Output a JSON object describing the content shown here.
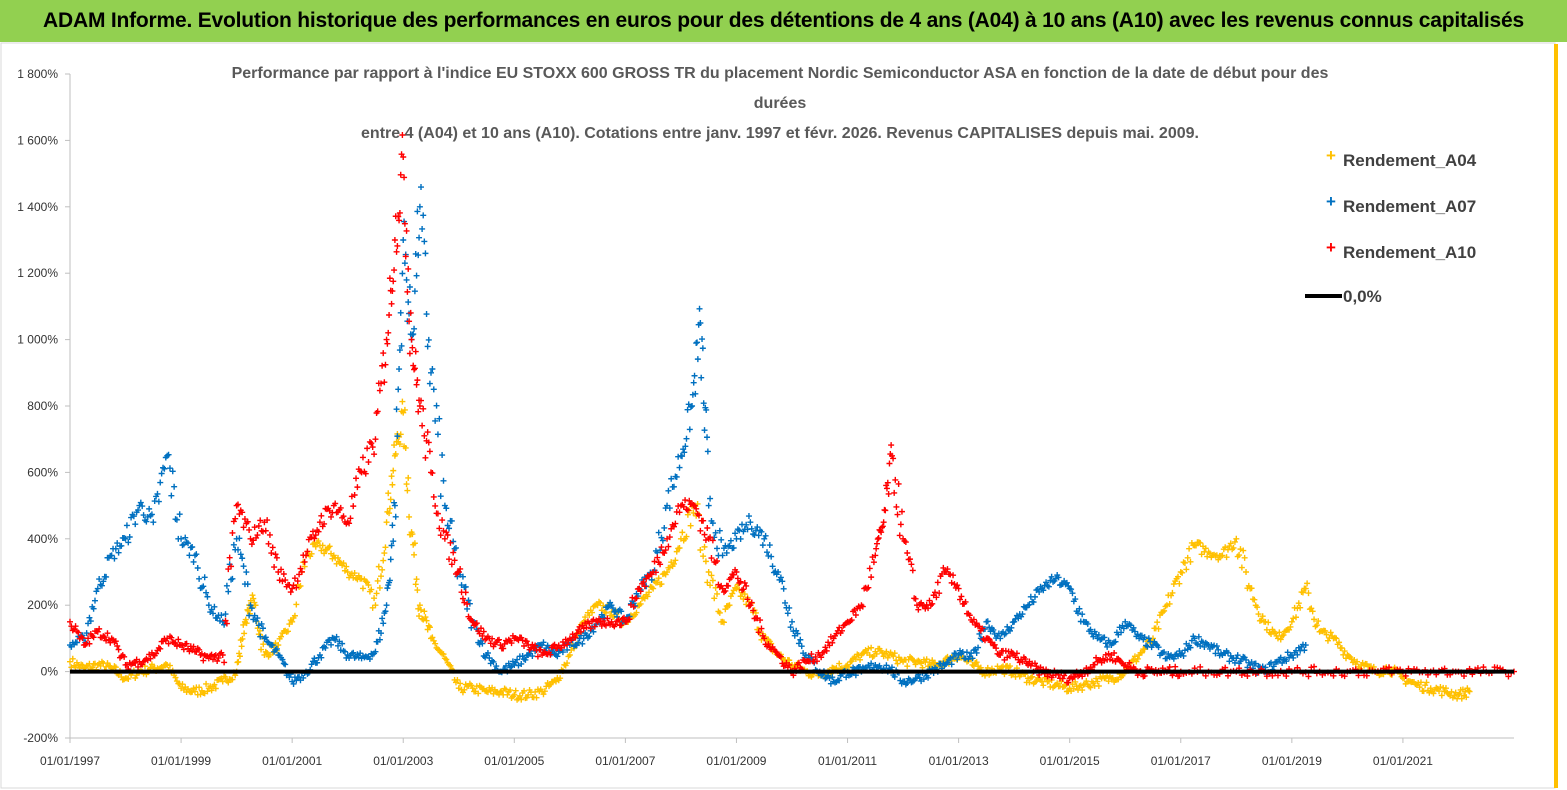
{
  "header": {
    "banner_text": "ADAM Informe. Evolution historique des performances en euros pour des détentions de 4 ans (A04) à 10 ans (A10) avec les revenus connus capitalisés"
  },
  "colors": {
    "banner": "#92d050",
    "A04": "#ffc000",
    "A07": "#0070c0",
    "A10": "#ff0000",
    "zero": "#000000"
  },
  "chart_data": {
    "type": "scatter",
    "title_lines": [
      "Performance par rapport à l'indice EU STOXX 600 GROSS TR  du placement Nordic Semiconductor ASA en fonction de la date de début pour des",
      "durées",
      "entre 4 (A04) et 10 ans (A10). Cotations entre janv. 1997 et févr. 2026. Revenus CAPITALISES depuis mai. 2009."
    ],
    "ylim": [
      -200,
      1800
    ],
    "y_ticks": [
      -200,
      0,
      200,
      400,
      600,
      800,
      1000,
      1200,
      1400,
      1600,
      1800
    ],
    "y_tick_labels": [
      "-200%",
      "0%",
      "200%",
      "400%",
      "600%",
      "800%",
      "1 000%",
      "1 200%",
      "1 400%",
      "1 600%",
      "1 800%"
    ],
    "xlim": [
      1997.0,
      2023.0
    ],
    "x_ticks": [
      1997,
      1999,
      2001,
      2003,
      2005,
      2007,
      2009,
      2011,
      2013,
      2015,
      2017,
      2019,
      2021
    ],
    "x_tick_labels": [
      "01/01/1997",
      "01/01/1999",
      "01/01/2001",
      "01/01/2003",
      "01/01/2005",
      "01/01/2007",
      "01/01/2009",
      "01/01/2011",
      "01/01/2013",
      "01/01/2015",
      "01/01/2017",
      "01/01/2019",
      "01/01/2021"
    ],
    "legend": [
      "Rendement_A04",
      "Rendement_A07",
      "Rendement_A10",
      "0,0%"
    ],
    "zero_line": 0,
    "series": [
      {
        "name": "Rendement_A04",
        "x": [
          1997.0,
          1997.25,
          1997.5,
          1997.75,
          1998.0,
          1998.25,
          1998.5,
          1998.75,
          1999.0,
          1999.25,
          1999.5,
          1999.75,
          2000.0,
          2000.15,
          2000.3,
          2000.5,
          2000.75,
          2001.0,
          2001.25,
          2001.5,
          2001.75,
          2002.0,
          2002.25,
          2002.5,
          2002.7,
          2002.85,
          2003.0,
          2003.15,
          2003.3,
          2003.5,
          2003.75,
          2004.0,
          2004.25,
          2004.5,
          2004.75,
          2005.0,
          2005.25,
          2005.5,
          2005.75,
          2006.0,
          2006.25,
          2006.5,
          2006.75,
          2007.0,
          2007.25,
          2007.5,
          2007.75,
          2008.0,
          2008.25,
          2008.5,
          2008.75,
          2009.0,
          2009.25,
          2009.5,
          2009.75,
          2010.0,
          2010.25,
          2010.5,
          2010.75,
          2011.0,
          2011.25,
          2011.5,
          2011.75,
          2012.0,
          2012.25,
          2012.5,
          2012.75,
          2013.0,
          2013.25,
          2013.5,
          2013.75,
          2014.0,
          2014.25,
          2014.5,
          2014.75,
          2015.0,
          2015.25,
          2015.5,
          2015.75,
          2016.0,
          2016.25,
          2016.5,
          2016.75,
          2017.0,
          2017.25,
          2017.5,
          2017.75,
          2018.0,
          2018.25,
          2018.5,
          2018.75,
          2019.0,
          2019.25,
          2019.5,
          2019.75,
          2020.0,
          2020.25,
          2020.5,
          2020.75,
          2021.0,
          2021.25,
          2021.5,
          2021.75,
          2022.0,
          2022.2
        ],
        "y": [
          30,
          10,
          20,
          10,
          -20,
          0,
          10,
          20,
          -50,
          -60,
          -50,
          -30,
          0,
          150,
          220,
          50,
          80,
          150,
          350,
          380,
          350,
          300,
          280,
          200,
          450,
          650,
          780,
          420,
          200,
          100,
          40,
          -50,
          -50,
          -60,
          -60,
          -70,
          -70,
          -60,
          -30,
          50,
          150,
          200,
          180,
          150,
          200,
          250,
          300,
          400,
          500,
          300,
          150,
          250,
          200,
          100,
          50,
          20,
          0,
          -10,
          10,
          20,
          50,
          60,
          50,
          30,
          30,
          20,
          30,
          50,
          20,
          0,
          10,
          0,
          -20,
          -30,
          -40,
          -50,
          -40,
          -30,
          -20,
          0,
          50,
          100,
          200,
          300,
          380,
          360,
          350,
          400,
          250,
          150,
          100,
          150,
          250,
          120,
          100,
          50,
          20,
          0,
          10,
          -20,
          -40,
          -50,
          -60,
          -70,
          -60
        ]
      },
      {
        "name": "Rendement_A07",
        "x": [
          1997.0,
          1997.25,
          1997.5,
          1997.75,
          1998.0,
          1998.25,
          1998.5,
          1998.75,
          1999.0,
          1999.25,
          1999.5,
          1999.75,
          2000.0,
          2000.25,
          2000.5,
          2000.75,
          2001.0,
          2001.25,
          2001.5,
          2001.75,
          2002.0,
          2002.25,
          2002.5,
          2002.7,
          2002.85,
          2003.0,
          2003.15,
          2003.3,
          2003.5,
          2003.75,
          2004.0,
          2004.25,
          2004.5,
          2004.75,
          2005.0,
          2005.25,
          2005.5,
          2005.75,
          2006.0,
          2006.25,
          2006.5,
          2006.75,
          2007.0,
          2007.25,
          2007.5,
          2007.75,
          2008.0,
          2008.2,
          2008.35,
          2008.5,
          2008.75,
          2009.0,
          2009.25,
          2009.5,
          2009.75,
          2010.0,
          2010.25,
          2010.5,
          2010.75,
          2011.0,
          2011.25,
          2011.5,
          2011.75,
          2012.0,
          2012.25,
          2012.5,
          2012.75,
          2013.0,
          2013.25,
          2013.5,
          2013.75,
          2014.0,
          2014.25,
          2014.5,
          2014.75,
          2015.0,
          2015.25,
          2015.5,
          2015.75,
          2016.0,
          2016.25,
          2016.5,
          2016.75,
          2017.0,
          2017.25,
          2017.5,
          2017.75,
          2018.0,
          2018.25,
          2018.5,
          2018.75,
          2019.0,
          2019.25
        ],
        "y": [
          80,
          100,
          250,
          350,
          400,
          500,
          450,
          650,
          400,
          350,
          200,
          150,
          400,
          200,
          100,
          50,
          -30,
          0,
          50,
          100,
          50,
          40,
          60,
          200,
          500,
          1300,
          1000,
          1400,
          900,
          500,
          300,
          150,
          50,
          0,
          20,
          50,
          80,
          50,
          80,
          100,
          150,
          200,
          150,
          250,
          300,
          500,
          650,
          800,
          1050,
          500,
          350,
          400,
          450,
          400,
          300,
          150,
          50,
          0,
          -30,
          0,
          0,
          20,
          10,
          -30,
          -20,
          0,
          20,
          50,
          40,
          150,
          100,
          150,
          200,
          250,
          280,
          250,
          150,
          100,
          80,
          150,
          100,
          80,
          40,
          50,
          100,
          80,
          50,
          40,
          20,
          0,
          30,
          50,
          80
        ]
      },
      {
        "name": "Rendement_A10",
        "x": [
          1997.0,
          1997.25,
          1997.5,
          1997.75,
          1998.0,
          1998.25,
          1998.5,
          1998.75,
          1999.0,
          1999.25,
          1999.5,
          1999.75,
          2000.0,
          2000.25,
          2000.5,
          2000.75,
          2001.0,
          2001.25,
          2001.5,
          2001.75,
          2002.0,
          2002.25,
          2002.5,
          2002.7,
          2002.85,
          2003.0,
          2003.15,
          2003.3,
          2003.5,
          2003.75,
          2004.0,
          2004.25,
          2004.5,
          2004.75,
          2005.0,
          2005.25,
          2005.5,
          2005.75,
          2006.0,
          2006.25,
          2006.5,
          2006.75,
          2007.0,
          2007.25,
          2007.5,
          2007.75,
          2008.0,
          2008.25,
          2008.5,
          2008.75,
          2009.0,
          2009.25,
          2009.5,
          2009.75,
          2010.0,
          2010.25,
          2010.5,
          2010.75,
          2011.0,
          2011.25,
          2011.5,
          2011.65,
          2011.8,
          2012.0,
          2012.25,
          2012.5,
          2012.75,
          2013.0,
          2013.25,
          2013.5,
          2013.75,
          2014.0,
          2014.25,
          2014.5,
          2014.75,
          2015.0,
          2015.25,
          2015.5,
          2015.75,
          2016.0,
          2016.25,
          2016.5,
          2016.75,
          2017.0,
          2017.5,
          2018.0,
          2018.5,
          2019.0,
          2019.5,
          2020.0,
          2020.5,
          2021.0,
          2021.5,
          2022.0,
          2022.5,
          2023.0
        ],
        "y": [
          150,
          80,
          120,
          100,
          20,
          30,
          50,
          100,
          80,
          60,
          40,
          50,
          500,
          400,
          450,
          300,
          250,
          350,
          450,
          500,
          450,
          600,
          700,
          1000,
          1300,
          1550,
          1000,
          800,
          600,
          400,
          300,
          150,
          100,
          80,
          100,
          80,
          50,
          70,
          100,
          130,
          150,
          150,
          150,
          250,
          300,
          400,
          500,
          500,
          400,
          250,
          300,
          200,
          100,
          50,
          0,
          30,
          50,
          100,
          150,
          200,
          350,
          450,
          650,
          400,
          200,
          200,
          300,
          250,
          150,
          100,
          50,
          50,
          20,
          0,
          -10,
          -20,
          0,
          30,
          50,
          20,
          0,
          0,
          0,
          0,
          0,
          0,
          0,
          0,
          0,
          0,
          0,
          0,
          0,
          0,
          0,
          0
        ]
      }
    ]
  }
}
